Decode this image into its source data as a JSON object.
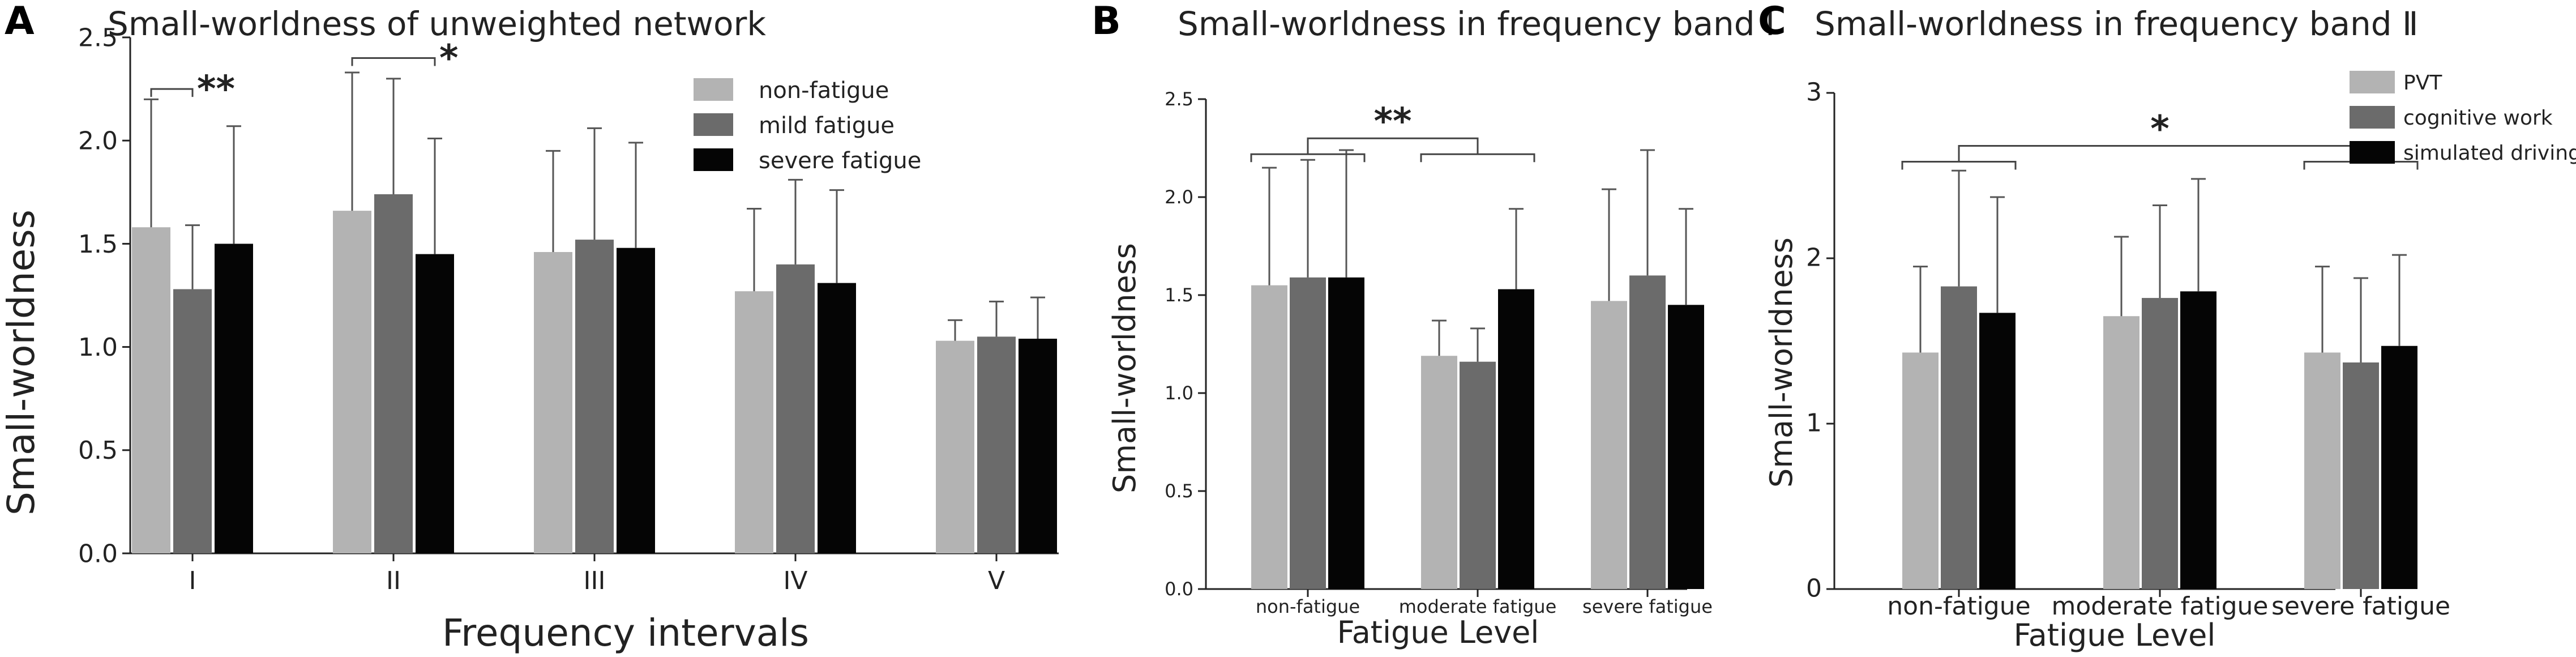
{
  "figure": {
    "colors": {
      "light": "#b3b3b3",
      "mid": "#6b6b6b",
      "dark": "#050505",
      "line": "#555555"
    }
  },
  "chart_data": [
    {
      "panel": "A",
      "type": "bar",
      "title": "Small-worldness of unweighted network",
      "xlabel": "Frequency intervals",
      "ylabel": "Small-worldness",
      "ylim": [
        0,
        2.5
      ],
      "yticks": [
        "0.0",
        "0.5",
        "1.0",
        "1.5",
        "2.0",
        "2.5"
      ],
      "categories": [
        "I",
        "II",
        "III",
        "IV",
        "V"
      ],
      "series": [
        {
          "name": "non-fatigue",
          "color": "#b3b3b3",
          "values": [
            1.58,
            1.66,
            1.46,
            1.27,
            1.03
          ],
          "errors": [
            0.62,
            0.67,
            0.49,
            0.4,
            0.1
          ]
        },
        {
          "name": "mild fatigue",
          "color": "#6b6b6b",
          "values": [
            1.28,
            1.74,
            1.52,
            1.4,
            1.05
          ],
          "errors": [
            0.31,
            0.56,
            0.54,
            0.41,
            0.17
          ]
        },
        {
          "name": "severe fatigue",
          "color": "#050505",
          "values": [
            1.5,
            1.45,
            1.48,
            1.31,
            1.04
          ],
          "errors": [
            0.57,
            0.56,
            0.51,
            0.45,
            0.2
          ]
        }
      ],
      "legend_position": "top-right",
      "significance": [
        {
          "label": "**",
          "from": {
            "category": 0,
            "series": 0
          },
          "to": {
            "category": 0,
            "series": 1
          },
          "y": 2.25
        },
        {
          "label": "*",
          "from": {
            "category": 1,
            "series": 0
          },
          "to": {
            "category": 1,
            "series": 2
          },
          "y": 2.4
        }
      ]
    },
    {
      "panel": "B",
      "type": "bar",
      "title": "Small-worldness in frequency band Ⅰ",
      "xlabel": "Fatigue Level",
      "ylabel": "Small-worldness",
      "ylim": [
        0,
        2.5
      ],
      "yticks": [
        "0.0",
        "0.5",
        "1.0",
        "1.5",
        "2.0",
        "2.5"
      ],
      "categories": [
        "non-fatigue",
        "moderate fatigue",
        "severe fatigue"
      ],
      "series": [
        {
          "name": "non-fatigue",
          "color": "#b3b3b3",
          "values": [
            1.55,
            1.19,
            1.47
          ],
          "errors": [
            0.6,
            0.18,
            0.57
          ]
        },
        {
          "name": "mild fatigue",
          "color": "#6b6b6b",
          "values": [
            1.59,
            1.16,
            1.6
          ],
          "errors": [
            0.6,
            0.17,
            0.64
          ]
        },
        {
          "name": "severe fatigue",
          "color": "#050505",
          "values": [
            1.59,
            1.53,
            1.45
          ],
          "errors": [
            0.65,
            0.41,
            0.49
          ]
        }
      ],
      "legend_position": "none",
      "significance": [
        {
          "label": "**",
          "from": {
            "category": 0
          },
          "to": {
            "category": 1
          },
          "y": 2.3
        }
      ]
    },
    {
      "panel": "C",
      "type": "bar",
      "title": "Small-worldness in frequency band Ⅱ",
      "xlabel": "Fatigue Level",
      "ylabel": "Small-worldness",
      "ylim": [
        0,
        3
      ],
      "yticks": [
        "0",
        "1",
        "2",
        "3"
      ],
      "categories": [
        "non-fatigue",
        "moderate fatigue",
        "severe fatigue"
      ],
      "series": [
        {
          "name": "PVT",
          "color": "#b3b3b3",
          "values": [
            1.43,
            1.65,
            1.43
          ],
          "errors": [
            0.52,
            0.48,
            0.52
          ]
        },
        {
          "name": "cognitive work",
          "color": "#6b6b6b",
          "values": [
            1.83,
            1.76,
            1.37
          ],
          "errors": [
            0.7,
            0.56,
            0.51
          ]
        },
        {
          "name": "simulated driving",
          "color": "#050505",
          "values": [
            1.67,
            1.8,
            1.47
          ],
          "errors": [
            0.7,
            0.68,
            0.55
          ]
        }
      ],
      "legend_position": "top-right",
      "significance": [
        {
          "label": "*",
          "from": {
            "category": 0
          },
          "to": {
            "category": 2
          },
          "y": 2.68
        }
      ]
    }
  ]
}
